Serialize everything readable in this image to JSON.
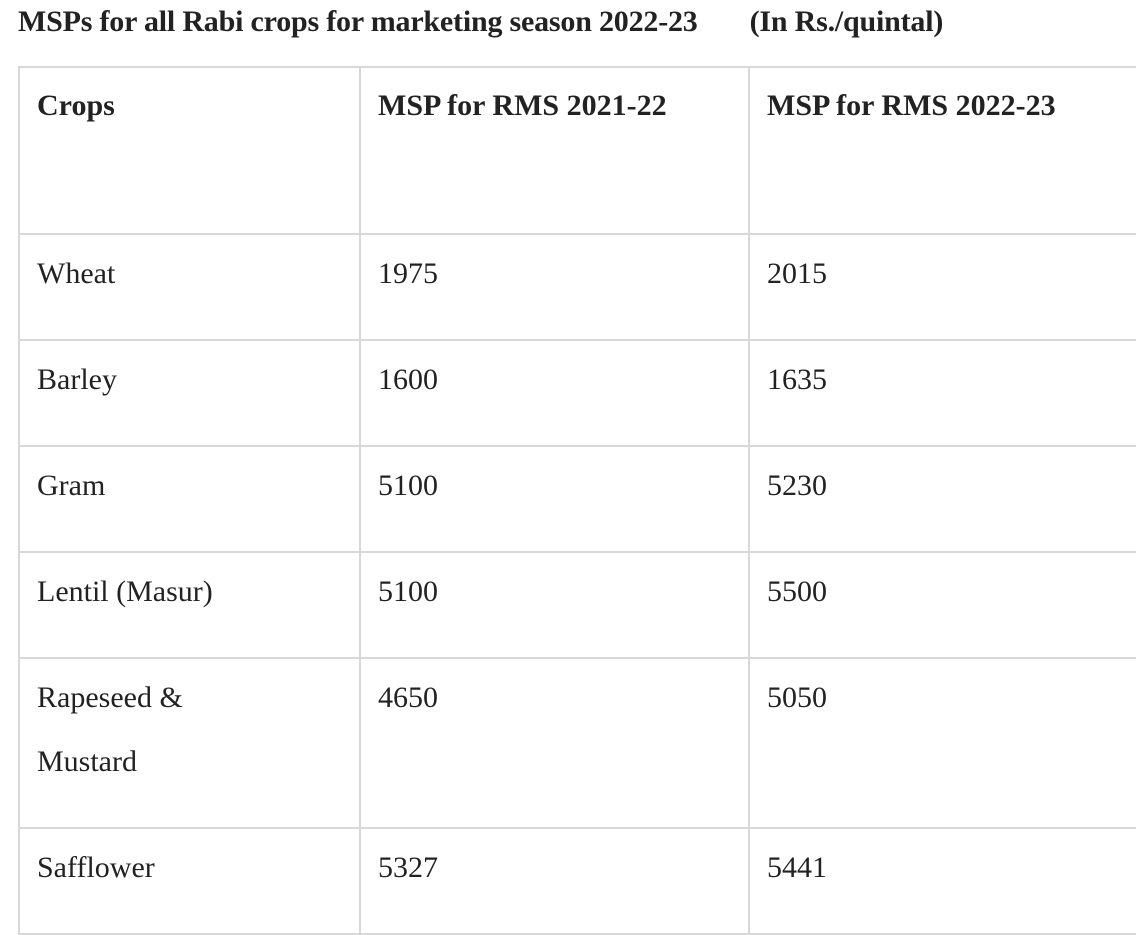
{
  "title": "MSPs for all Rabi crops for marketing season 2022-23",
  "unit": "(In Rs./quintal)",
  "table": {
    "headers": [
      "Crops",
      "MSP for RMS 2021-22",
      "MSP for RMS 2022-23"
    ],
    "rows": [
      {
        "crop": "Wheat",
        "msp_2021_22": "1975",
        "msp_2022_23": "2015"
      },
      {
        "crop": "Barley",
        "msp_2021_22": "1600",
        "msp_2022_23": "1635"
      },
      {
        "crop": "Gram",
        "msp_2021_22": "5100",
        "msp_2022_23": "5230"
      },
      {
        "crop": "Lentil (Masur)",
        "msp_2021_22": "5100",
        "msp_2022_23": "5500"
      },
      {
        "crop": "Rapeseed & Mustard",
        "msp_2021_22": "4650",
        "msp_2022_23": "5050"
      },
      {
        "crop": "Safflower",
        "msp_2021_22": "5327",
        "msp_2022_23": "5441"
      }
    ]
  }
}
